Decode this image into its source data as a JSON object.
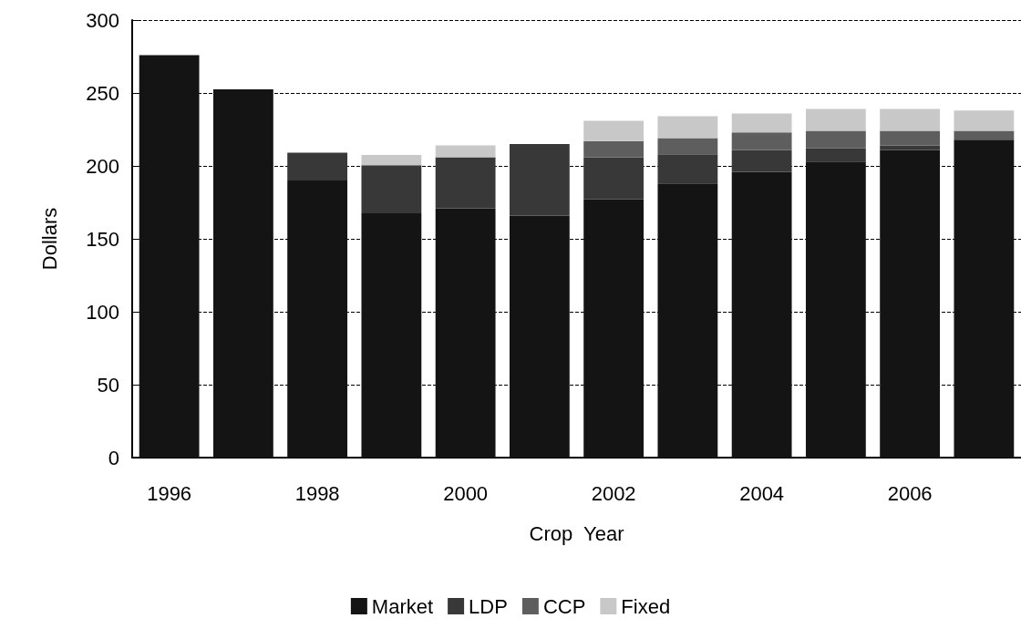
{
  "chart_data": {
    "type": "bar",
    "stacked": true,
    "xlabel": "Crop  Year",
    "ylabel": "Dollars",
    "categories": [
      "1996",
      null,
      "1998",
      null,
      "2000",
      null,
      "2002",
      null,
      "2004",
      null,
      "2006",
      null
    ],
    "series": [
      {
        "name": "Market",
        "color": "#141414",
        "values": [
          276,
          252.5,
          190,
          167.5,
          171,
          166,
          177,
          188,
          196,
          203,
          211,
          218
        ]
      },
      {
        "name": "LDP",
        "color": "#383838",
        "values": [
          0,
          0,
          19,
          33,
          35,
          49,
          29,
          20,
          15,
          9,
          3,
          0
        ]
      },
      {
        "name": "CCP",
        "color": "#5e5e5e",
        "values": [
          0,
          0,
          0,
          0,
          0,
          0,
          11,
          11,
          12,
          12,
          10,
          6
        ]
      },
      {
        "name": "Fixed",
        "color": "#c8c8c8",
        "values": [
          0,
          0,
          0,
          7,
          8,
          0,
          14,
          15,
          13,
          15,
          15,
          14
        ]
      }
    ],
    "ylim": [
      0,
      300
    ],
    "yticks": [
      0,
      50,
      100,
      150,
      200,
      250,
      300
    ],
    "grid": "y",
    "legend": "bottom"
  }
}
